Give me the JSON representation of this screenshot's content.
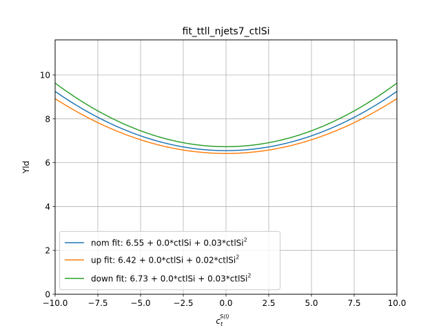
{
  "chart_data": {
    "type": "line",
    "title": "fit_ttll_njets7_ctlSi",
    "ylabel": "Yld",
    "xlabel": {
      "base": "c",
      "sub": "t",
      "sup": "S(l)"
    },
    "xlim": [
      -10,
      10
    ],
    "ylim": [
      0,
      11.6
    ],
    "xticks": [
      -10,
      -7.5,
      -5,
      -2.5,
      0,
      2.5,
      5,
      7.5,
      10
    ],
    "xtick_labels": [
      "−10.0",
      "−7.5",
      "−5.0",
      "−2.5",
      "0.0",
      "2.5",
      "5.0",
      "7.5",
      "10.0"
    ],
    "yticks": [
      0,
      2,
      4,
      6,
      8,
      10
    ],
    "ytick_labels": [
      "0",
      "2",
      "4",
      "6",
      "8",
      "10"
    ],
    "grid": true,
    "legend_position": "lower-left",
    "series": [
      {
        "name": "nom fit: 6.55 + 0.0*ctlSi + 0.03*ctlSi",
        "name_sup": "2",
        "color": "#1f77b4",
        "formula": {
          "a": 6.55,
          "b": 0.0,
          "c": 0.027
        },
        "points": [
          [
            -10,
            9.25
          ],
          [
            -7.5,
            8.07
          ],
          [
            -5,
            7.23
          ],
          [
            -2.5,
            6.72
          ],
          [
            0,
            6.55
          ],
          [
            2.5,
            6.72
          ],
          [
            5,
            7.23
          ],
          [
            7.5,
            8.07
          ],
          [
            10,
            9.25
          ]
        ]
      },
      {
        "name": "up fit: 6.42 + 0.0*ctlSi + 0.02*ctlSi",
        "name_sup": "2",
        "color": "#ff7f0e",
        "formula": {
          "a": 6.42,
          "b": 0.0,
          "c": 0.025
        },
        "points": [
          [
            -10,
            8.92
          ],
          [
            -7.5,
            7.83
          ],
          [
            -5,
            7.05
          ],
          [
            -2.5,
            6.58
          ],
          [
            0,
            6.42
          ],
          [
            2.5,
            6.58
          ],
          [
            5,
            7.05
          ],
          [
            7.5,
            7.83
          ],
          [
            10,
            8.92
          ]
        ]
      },
      {
        "name": "down fit: 6.73 + 0.0*ctlSi + 0.03*ctlSi",
        "name_sup": "2",
        "color": "#2ca02c",
        "formula": {
          "a": 6.73,
          "b": 0.0,
          "c": 0.029
        },
        "points": [
          [
            -10,
            9.63
          ],
          [
            -7.5,
            8.36
          ],
          [
            -5,
            7.46
          ],
          [
            -2.5,
            6.91
          ],
          [
            0,
            6.73
          ],
          [
            2.5,
            6.91
          ],
          [
            5,
            7.46
          ],
          [
            7.5,
            8.36
          ],
          [
            10,
            9.63
          ]
        ]
      }
    ]
  }
}
